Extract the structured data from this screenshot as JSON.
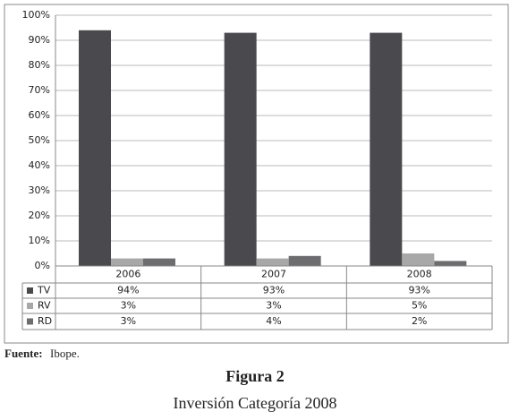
{
  "chart_data": {
    "type": "bar",
    "categories": [
      "2006",
      "2007",
      "2008"
    ],
    "series": [
      {
        "name": "TV",
        "color": "#4a4a4e",
        "values": [
          94,
          93,
          93
        ],
        "value_labels": [
          "94%",
          "93%",
          "93%"
        ]
      },
      {
        "name": "RV",
        "color": "#a8a8a8",
        "values": [
          3,
          3,
          5
        ],
        "value_labels": [
          "3%",
          "3%",
          "5%"
        ]
      },
      {
        "name": "RD",
        "color": "#6d6d70",
        "values": [
          3,
          4,
          2
        ],
        "value_labels": [
          "3%",
          "4%",
          "2%"
        ]
      }
    ],
    "ylim": [
      0,
      100
    ],
    "yticks": [
      {
        "value": 0,
        "label": "0%"
      },
      {
        "value": 10,
        "label": "10%"
      },
      {
        "value": 20,
        "label": "20%"
      },
      {
        "value": 30,
        "label": "30%"
      },
      {
        "value": 40,
        "label": "40%"
      },
      {
        "value": 50,
        "label": "50%"
      },
      {
        "value": 60,
        "label": "60%"
      },
      {
        "value": 70,
        "label": "70%"
      },
      {
        "value": 80,
        "label": "80%"
      },
      {
        "value": 90,
        "label": "90%"
      },
      {
        "value": 100,
        "label": "100%"
      }
    ],
    "grid": true,
    "source_label": "Fuente:",
    "source": "Ibope.",
    "figure_label": "Figura 2",
    "caption": "Inversión Categoría 2008"
  }
}
